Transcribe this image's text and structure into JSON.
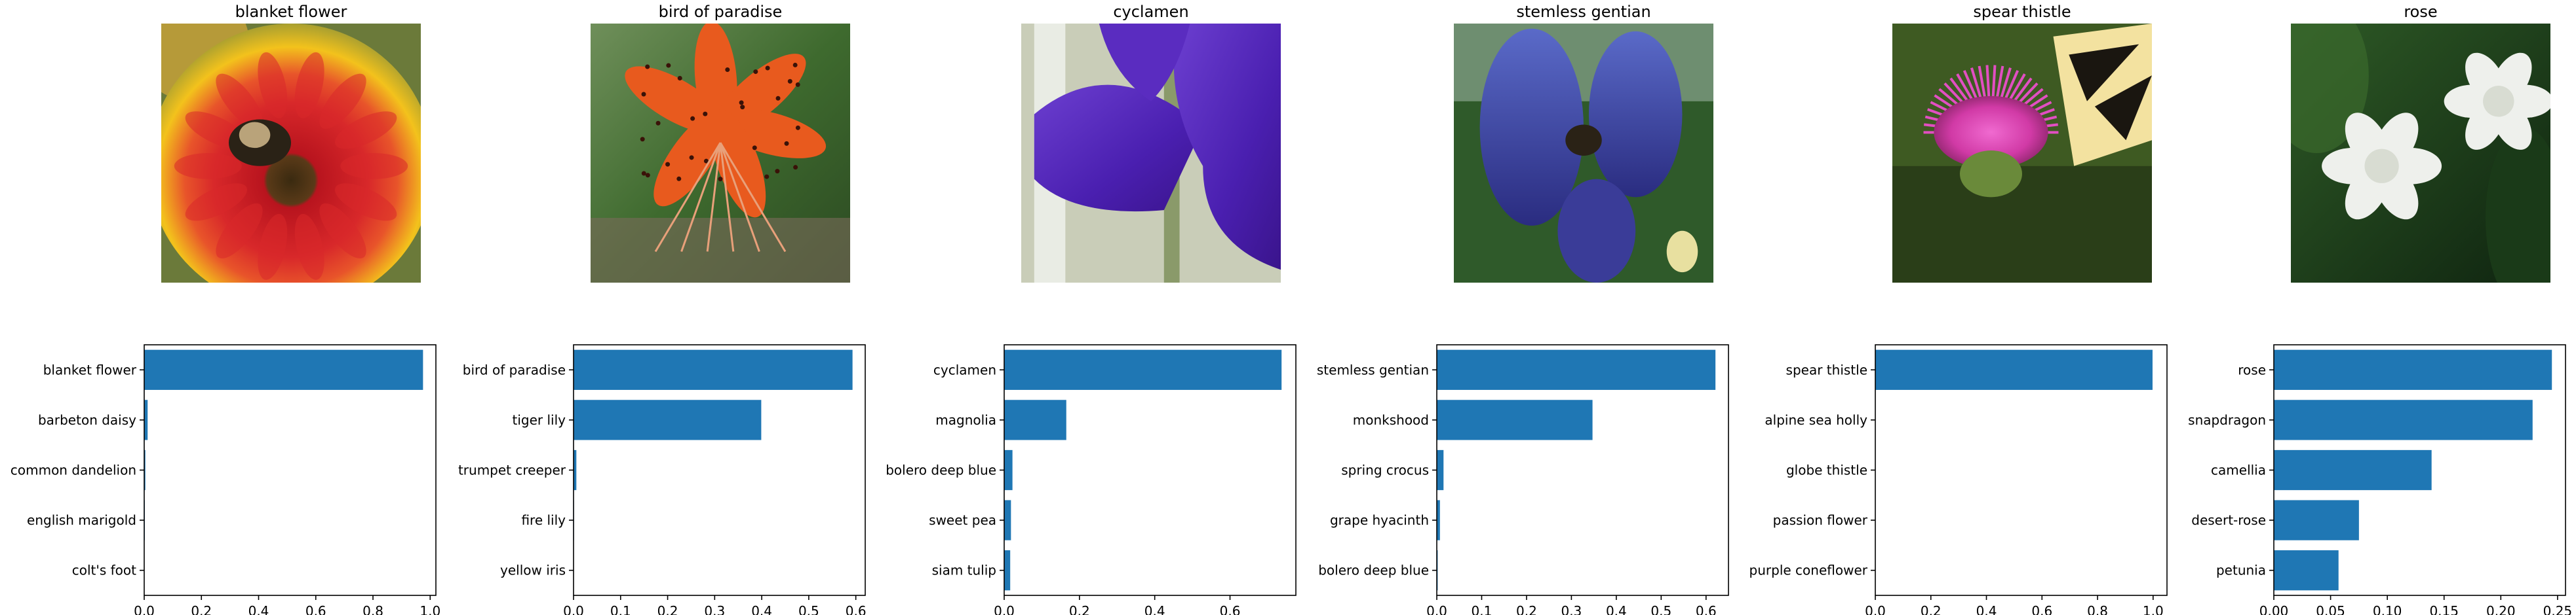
{
  "colors": {
    "bar": "#1f77b4",
    "axis": "#000000"
  },
  "chart_data": [
    {
      "type": "bar",
      "orientation": "horizontal",
      "title": "blanket flower",
      "image": "flower-photo-blanket-flower",
      "categories": [
        "blanket flower",
        "barbeton daisy",
        "common dandelion",
        "english marigold",
        "colt's foot"
      ],
      "values": [
        0.975,
        0.012,
        0.004,
        0.002,
        0.001
      ],
      "xlim": [
        0,
        1.02
      ],
      "xticks": [
        0.0,
        0.2,
        0.4,
        0.6,
        0.8,
        1.0
      ],
      "xtick_labels": [
        "0.0",
        "0.2",
        "0.4",
        "0.6",
        "0.8",
        "1.0"
      ]
    },
    {
      "type": "bar",
      "orientation": "horizontal",
      "title": "bird of paradise",
      "image": "flower-photo-bird-of-paradise",
      "categories": [
        "bird of paradise",
        "tiger lily",
        "trumpet creeper",
        "fire lily",
        "yellow iris"
      ],
      "values": [
        0.593,
        0.399,
        0.006,
        0.001,
        0.0005
      ],
      "xlim": [
        0,
        0.62
      ],
      "xticks": [
        0.0,
        0.1,
        0.2,
        0.3,
        0.4,
        0.5,
        0.6
      ],
      "xtick_labels": [
        "0.0",
        "0.1",
        "0.2",
        "0.3",
        "0.4",
        "0.5",
        "0.6"
      ]
    },
    {
      "type": "bar",
      "orientation": "horizontal",
      "title": "cyclamen",
      "image": "flower-photo-cyclamen",
      "categories": [
        "cyclamen",
        "magnolia",
        "bolero deep blue",
        "sweet pea",
        "siam tulip"
      ],
      "values": [
        0.737,
        0.165,
        0.022,
        0.018,
        0.016
      ],
      "xlim": [
        0,
        0.775
      ],
      "xticks": [
        0.0,
        0.2,
        0.4,
        0.6
      ],
      "xtick_labels": [
        "0.0",
        "0.2",
        "0.4",
        "0.6"
      ]
    },
    {
      "type": "bar",
      "orientation": "horizontal",
      "title": "stemless gentian",
      "image": "flower-photo-stemless-gentian",
      "categories": [
        "stemless gentian",
        "monkshood",
        "spring crocus",
        "grape hyacinth",
        "bolero deep blue"
      ],
      "values": [
        0.621,
        0.347,
        0.015,
        0.007,
        0.002
      ],
      "xlim": [
        0,
        0.65
      ],
      "xticks": [
        0.0,
        0.1,
        0.2,
        0.3,
        0.4,
        0.5,
        0.6
      ],
      "xtick_labels": [
        "0.0",
        "0.1",
        "0.2",
        "0.3",
        "0.4",
        "0.5",
        "0.6"
      ]
    },
    {
      "type": "bar",
      "orientation": "horizontal",
      "title": "spear thistle",
      "image": "flower-photo-spear-thistle",
      "categories": [
        "spear thistle",
        "alpine sea holly",
        "globe thistle",
        "passion flower",
        "purple coneflower"
      ],
      "values": [
        0.998,
        0.0005,
        0.0003,
        0.0002,
        0.0001
      ],
      "xlim": [
        0,
        1.05
      ],
      "xticks": [
        0.0,
        0.2,
        0.4,
        0.6,
        0.8,
        1.0
      ],
      "xtick_labels": [
        "0.0",
        "0.2",
        "0.4",
        "0.6",
        "0.8",
        "1.0"
      ]
    },
    {
      "type": "bar",
      "orientation": "horizontal",
      "title": "rose",
      "image": "flower-photo-rose",
      "categories": [
        "rose",
        "snapdragon",
        "camellia",
        "desert-rose",
        "petunia"
      ],
      "values": [
        0.245,
        0.228,
        0.139,
        0.075,
        0.057
      ],
      "xlim": [
        0,
        0.257
      ],
      "xticks": [
        0.0,
        0.05,
        0.1,
        0.15,
        0.2,
        0.25
      ],
      "xtick_labels": [
        "0.00",
        "0.05",
        "0.10",
        "0.15",
        "0.20",
        "0.25"
      ]
    }
  ]
}
